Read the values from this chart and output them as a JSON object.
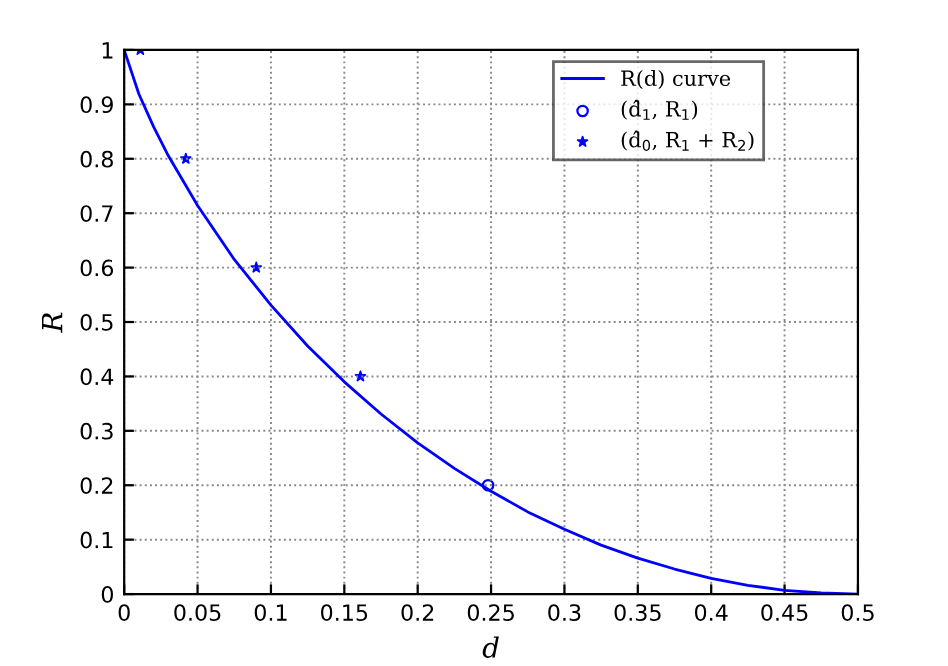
{
  "chart_data": {
    "type": "line",
    "xlabel": "d",
    "ylabel": "R",
    "xlim": [
      0,
      0.5
    ],
    "xticks": [
      0,
      0.05,
      0.1,
      0.15,
      0.2,
      0.25,
      0.3,
      0.35,
      0.4,
      0.45,
      0.5
    ],
    "ylim": [
      0,
      1
    ],
    "yticks": [
      0,
      0.1,
      0.2,
      0.3,
      0.4,
      0.5,
      0.6,
      0.7,
      0.8,
      0.9,
      1
    ],
    "grid": true,
    "legend": "top right",
    "series": [
      {
        "name": "R(d) curve",
        "color": "#0000ff",
        "marker": "none",
        "line_style": "solid",
        "x": [
          0,
          0.01,
          0.02,
          0.03,
          0.05,
          0.075,
          0.1,
          0.125,
          0.15,
          0.175,
          0.2,
          0.225,
          0.25,
          0.275,
          0.3,
          0.325,
          0.35,
          0.375,
          0.4,
          0.425,
          0.45,
          0.475,
          0.5
        ],
        "values": [
          1,
          0.919,
          0.859,
          0.806,
          0.714,
          0.615,
          0.531,
          0.456,
          0.39,
          0.331,
          0.278,
          0.231,
          0.189,
          0.151,
          0.119,
          0.09,
          0.066,
          0.046,
          0.029,
          0.016,
          0.007,
          0.002,
          0
        ]
      },
      {
        "name": "(d̂$_{1}$, R$_{1}$)",
        "type": "scatter",
        "color": "#0000ff",
        "marker": "circle",
        "x": [
          0.248
        ],
        "values": [
          0.2
        ]
      },
      {
        "name": "(d̂$_{0}$, R$_{1}$ + R$_{2}$)",
        "type": "scatter",
        "color": "#0000ff",
        "marker": "star",
        "x": [
          0.011,
          0.042,
          0.09,
          0.161
        ],
        "values": [
          1,
          0.8,
          0.6,
          0.4
        ]
      }
    ]
  }
}
